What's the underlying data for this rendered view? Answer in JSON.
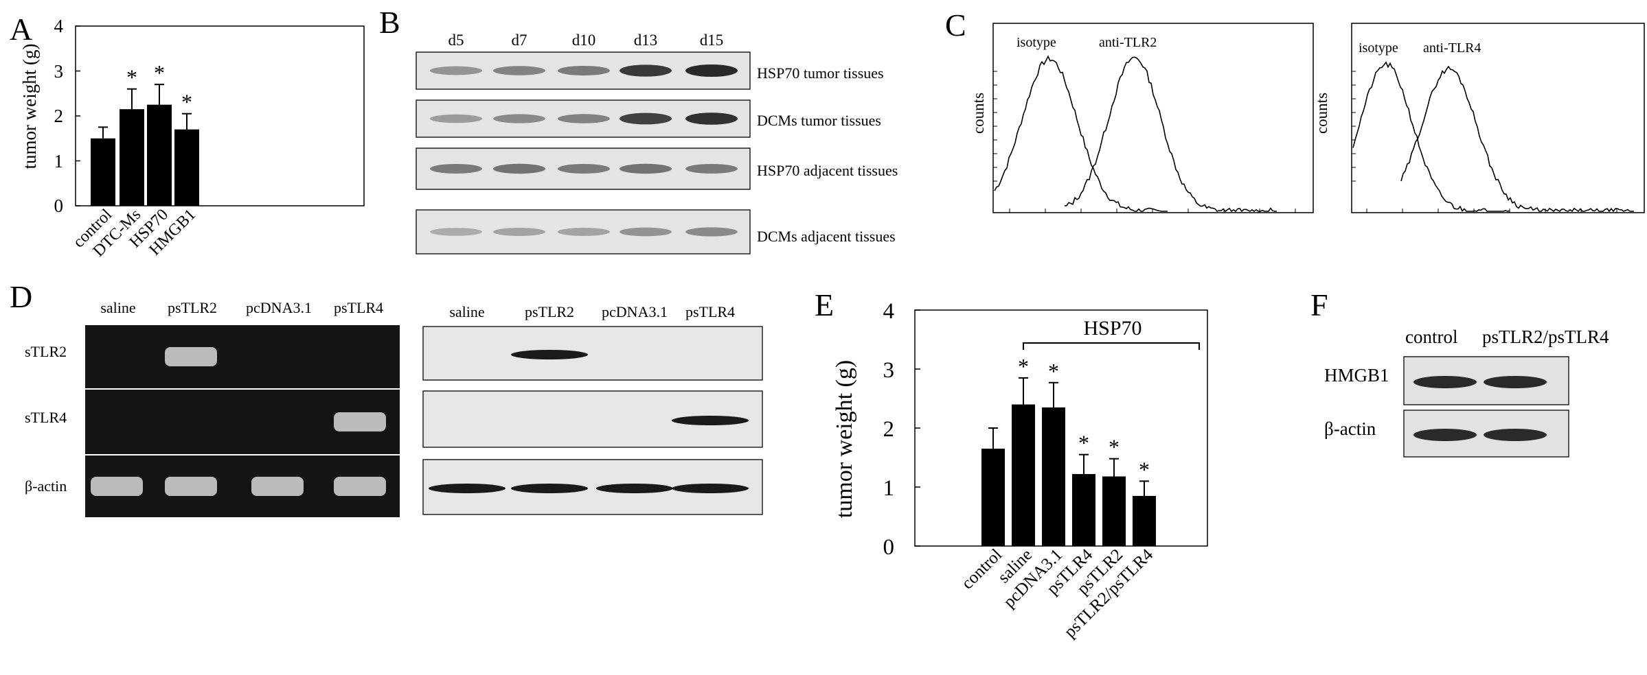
{
  "panels": {
    "A": {
      "letter": "A",
      "ylabel": "tumor weight (g)",
      "yticks": [
        "0",
        "1",
        "2",
        "3",
        "4"
      ]
    },
    "B": {
      "letter": "B",
      "days": [
        "d5",
        "d7",
        "d10",
        "d13",
        "d15"
      ],
      "rows": [
        "HSP70 tumor tissues",
        "DCMs tumor tissues",
        "HSP70 adjacent tissues",
        "DCMs adjacent tissues"
      ],
      "band_intensity": [
        [
          0.35,
          0.45,
          0.5,
          0.9,
          1.0
        ],
        [
          0.3,
          0.4,
          0.45,
          0.85,
          0.95
        ],
        [
          0.5,
          0.55,
          0.5,
          0.55,
          0.5
        ],
        [
          0.2,
          0.25,
          0.25,
          0.35,
          0.4
        ]
      ]
    },
    "C": {
      "letter": "C",
      "left": {
        "ylabel": "counts",
        "label1": "isotype",
        "label2": "anti-TLR2"
      },
      "right": {
        "ylabel": "counts",
        "label1": "isotype",
        "label2": "anti-TLR4"
      }
    },
    "D": {
      "letter": "D",
      "lanes": [
        "saline",
        "psTLR2",
        "pcDNA3.1",
        "psTLR4"
      ],
      "rows": [
        "sTLR2",
        "sTLR4",
        "β-actin"
      ],
      "gel_bands": [
        [
          0,
          1,
          0,
          0
        ],
        [
          0,
          0,
          0,
          1
        ],
        [
          1,
          1,
          1,
          1
        ]
      ],
      "blot_bands": [
        [
          0,
          1,
          0,
          0
        ],
        [
          0,
          0,
          0,
          1
        ],
        [
          1,
          1,
          1,
          1
        ]
      ]
    },
    "E": {
      "letter": "E",
      "ylabel": "tumor weight (g)",
      "yticks": [
        "0",
        "1",
        "2",
        "3",
        "4"
      ],
      "bracket_label": "HSP70"
    },
    "F": {
      "letter": "F",
      "lanes": [
        "control",
        "psTLR2/psTLR4"
      ],
      "rows": [
        "HMGB1",
        "β-actin"
      ]
    }
  },
  "chart_data": [
    {
      "type": "bar",
      "panel": "A",
      "categories": [
        "control",
        "DTC-Ms",
        "HSP70",
        "HMGB1"
      ],
      "values": [
        1.5,
        2.15,
        2.25,
        1.7
      ],
      "errors": [
        0.25,
        0.45,
        0.45,
        0.35
      ],
      "significance": [
        "",
        "*",
        "*",
        "*"
      ],
      "ylabel": "tumor weight (g)",
      "ylim": [
        0,
        4
      ],
      "color": "#000000"
    },
    {
      "type": "bar",
      "panel": "E",
      "categories": [
        "control",
        "saline",
        "pcDNA3.1",
        "psTLR4",
        "psTLR2",
        "psTLR2/psTLR4"
      ],
      "values": [
        1.65,
        2.4,
        2.35,
        1.22,
        1.18,
        0.85
      ],
      "errors": [
        0.35,
        0.45,
        0.42,
        0.33,
        0.3,
        0.25
      ],
      "significance": [
        "",
        "*",
        "*",
        "*",
        "*",
        "*"
      ],
      "ylabel": "tumor weight (g)",
      "ylim": [
        0,
        4
      ],
      "color": "#000000"
    }
  ]
}
